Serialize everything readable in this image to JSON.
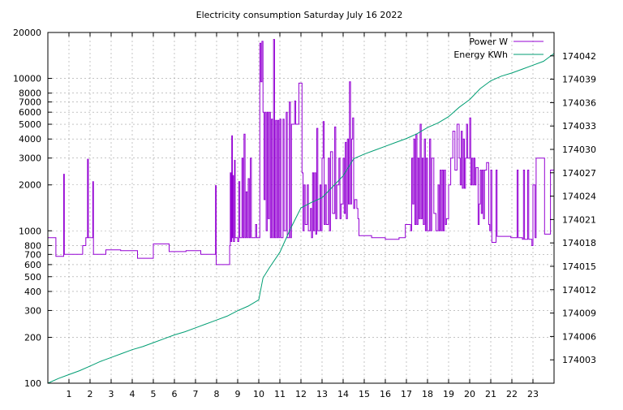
{
  "chart_data": {
    "type": "line",
    "title": "Electricity consumption Saturday July 16 2022",
    "xlabel": "",
    "ylabel": "",
    "y2label": "",
    "grid": true,
    "legend_position": "top-right",
    "x_ticks": [
      1,
      2,
      3,
      4,
      5,
      6,
      7,
      8,
      9,
      10,
      11,
      12,
      13,
      14,
      15,
      16,
      17,
      18,
      19,
      20,
      21,
      22,
      23
    ],
    "xlim": [
      0,
      24
    ],
    "y_scale": "log",
    "ylim": [
      100,
      20000
    ],
    "y_ticks": [
      100,
      200,
      300,
      400,
      500,
      600,
      700,
      800,
      1000,
      2000,
      3000,
      4000,
      5000,
      6000,
      7000,
      8000,
      10000,
      20000
    ],
    "y2lim": [
      174000,
      174045
    ],
    "y2_ticks": [
      174003,
      174006,
      174009,
      174012,
      174015,
      174018,
      174021,
      174024,
      174027,
      174030,
      174033,
      174036,
      174039,
      174042
    ],
    "series": [
      {
        "name": "Power W",
        "axis": "y",
        "color": "#9400d3",
        "points": [
          [
            0,
            900
          ],
          [
            0.35,
            900
          ],
          [
            0.38,
            680
          ],
          [
            0.72,
            680
          ],
          [
            0.75,
            2350
          ],
          [
            0.78,
            700
          ],
          [
            1.6,
            700
          ],
          [
            1.65,
            800
          ],
          [
            1.8,
            900
          ],
          [
            1.88,
            2950
          ],
          [
            1.92,
            900
          ],
          [
            2.1,
            900
          ],
          [
            2.13,
            2100
          ],
          [
            2.16,
            700
          ],
          [
            2.7,
            700
          ],
          [
            2.75,
            750
          ],
          [
            3.4,
            750
          ],
          [
            3.45,
            740
          ],
          [
            4.2,
            740
          ],
          [
            4.25,
            660
          ],
          [
            4.95,
            660
          ],
          [
            5.0,
            820
          ],
          [
            5.7,
            820
          ],
          [
            5.75,
            730
          ],
          [
            6.5,
            730
          ],
          [
            6.55,
            740
          ],
          [
            7.2,
            740
          ],
          [
            7.25,
            700
          ],
          [
            7.9,
            700
          ],
          [
            7.95,
            1980
          ],
          [
            7.98,
            600
          ],
          [
            8.6,
            600
          ],
          [
            8.62,
            800
          ],
          [
            8.65,
            2400
          ],
          [
            8.68,
            850
          ],
          [
            8.72,
            4200
          ],
          [
            8.75,
            900
          ],
          [
            8.78,
            2300
          ],
          [
            8.8,
            850
          ],
          [
            8.85,
            2900
          ],
          [
            8.88,
            900
          ],
          [
            9.0,
            850
          ],
          [
            9.05,
            2100
          ],
          [
            9.1,
            900
          ],
          [
            9.2,
            3000
          ],
          [
            9.25,
            900
          ],
          [
            9.3,
            4300
          ],
          [
            9.35,
            900
          ],
          [
            9.4,
            1800
          ],
          [
            9.45,
            900
          ],
          [
            9.5,
            2200
          ],
          [
            9.55,
            900
          ],
          [
            9.6,
            3000
          ],
          [
            9.65,
            900
          ],
          [
            9.8,
            900
          ],
          [
            9.85,
            1100
          ],
          [
            9.9,
            900
          ],
          [
            10.0,
            900
          ],
          [
            10.05,
            17000
          ],
          [
            10.1,
            9500
          ],
          [
            10.15,
            17500
          ],
          [
            10.2,
            6000
          ],
          [
            10.25,
            1600
          ],
          [
            10.3,
            6000
          ],
          [
            10.35,
            1000
          ],
          [
            10.4,
            6000
          ],
          [
            10.45,
            1200
          ],
          [
            10.5,
            6000
          ],
          [
            10.55,
            900
          ],
          [
            10.6,
            5400
          ],
          [
            10.65,
            900
          ],
          [
            10.7,
            18000
          ],
          [
            10.75,
            900
          ],
          [
            10.8,
            5300
          ],
          [
            10.85,
            900
          ],
          [
            10.9,
            5300
          ],
          [
            10.95,
            900
          ],
          [
            11.0,
            5400
          ],
          [
            11.05,
            900
          ],
          [
            11.15,
            5400
          ],
          [
            11.2,
            1000
          ],
          [
            11.3,
            6000
          ],
          [
            11.35,
            900
          ],
          [
            11.45,
            7000
          ],
          [
            11.5,
            900
          ],
          [
            11.55,
            5000
          ],
          [
            11.65,
            5000
          ],
          [
            11.7,
            7100
          ],
          [
            11.75,
            5000
          ],
          [
            11.85,
            5000
          ],
          [
            11.9,
            9300
          ],
          [
            12.0,
            9300
          ],
          [
            12.05,
            2400
          ],
          [
            12.1,
            1000
          ],
          [
            12.15,
            2000
          ],
          [
            12.2,
            1100
          ],
          [
            12.3,
            2000
          ],
          [
            12.35,
            1000
          ],
          [
            12.45,
            1400
          ],
          [
            12.5,
            900
          ],
          [
            12.55,
            2400
          ],
          [
            12.6,
            1000
          ],
          [
            12.65,
            2400
          ],
          [
            12.7,
            950
          ],
          [
            12.75,
            4700
          ],
          [
            12.8,
            1000
          ],
          [
            12.9,
            2000
          ],
          [
            12.95,
            1000
          ],
          [
            13.0,
            3000
          ],
          [
            13.05,
            5200
          ],
          [
            13.1,
            1100
          ],
          [
            13.15,
            2000
          ],
          [
            13.2,
            1100
          ],
          [
            13.3,
            3000
          ],
          [
            13.35,
            1000
          ],
          [
            13.4,
            3300
          ],
          [
            13.45,
            3300
          ],
          [
            13.5,
            1300
          ],
          [
            13.6,
            4800
          ],
          [
            13.65,
            1200
          ],
          [
            13.7,
            2000
          ],
          [
            13.8,
            3000
          ],
          [
            13.85,
            1200
          ],
          [
            13.9,
            1500
          ],
          [
            14.0,
            3000
          ],
          [
            14.05,
            1300
          ],
          [
            14.1,
            3800
          ],
          [
            14.15,
            1200
          ],
          [
            14.2,
            4000
          ],
          [
            14.25,
            1500
          ],
          [
            14.3,
            9500
          ],
          [
            14.35,
            1500
          ],
          [
            14.4,
            4000
          ],
          [
            14.45,
            5500
          ],
          [
            14.5,
            1400
          ],
          [
            14.55,
            1600
          ],
          [
            14.6,
            1600
          ],
          [
            14.65,
            1400
          ],
          [
            14.7,
            1200
          ],
          [
            14.75,
            930
          ],
          [
            15.3,
            930
          ],
          [
            15.35,
            900
          ],
          [
            16.0,
            880
          ],
          [
            16.6,
            880
          ],
          [
            16.65,
            900
          ],
          [
            16.9,
            900
          ],
          [
            16.95,
            1100
          ],
          [
            17.2,
            1000
          ],
          [
            17.25,
            3000
          ],
          [
            17.3,
            1500
          ],
          [
            17.35,
            4000
          ],
          [
            17.4,
            1100
          ],
          [
            17.45,
            4300
          ],
          [
            17.5,
            1100
          ],
          [
            17.55,
            3000
          ],
          [
            17.6,
            1200
          ],
          [
            17.65,
            5000
          ],
          [
            17.7,
            1200
          ],
          [
            17.75,
            3000
          ],
          [
            17.8,
            1100
          ],
          [
            17.85,
            4000
          ],
          [
            17.9,
            1000
          ],
          [
            17.95,
            3000
          ],
          [
            18.0,
            1000
          ],
          [
            18.1,
            4000
          ],
          [
            18.15,
            1000
          ],
          [
            18.2,
            3000
          ],
          [
            18.3,
            1300
          ],
          [
            18.4,
            1000
          ],
          [
            18.5,
            2000
          ],
          [
            18.55,
            1000
          ],
          [
            18.6,
            2500
          ],
          [
            18.65,
            1000
          ],
          [
            18.7,
            2500
          ],
          [
            18.75,
            1000
          ],
          [
            18.8,
            2500
          ],
          [
            18.85,
            1100
          ],
          [
            18.9,
            1200
          ],
          [
            19.0,
            2000
          ],
          [
            19.1,
            3000
          ],
          [
            19.2,
            4500
          ],
          [
            19.3,
            2500
          ],
          [
            19.4,
            5000
          ],
          [
            19.5,
            3000
          ],
          [
            19.55,
            2000
          ],
          [
            19.6,
            4500
          ],
          [
            19.65,
            1900
          ],
          [
            19.7,
            4000
          ],
          [
            19.75,
            1900
          ],
          [
            19.8,
            3000
          ],
          [
            19.85,
            5000
          ],
          [
            19.9,
            3000
          ],
          [
            20.0,
            5500
          ],
          [
            20.05,
            2000
          ],
          [
            20.1,
            3000
          ],
          [
            20.15,
            2000
          ],
          [
            20.2,
            3000
          ],
          [
            20.25,
            2000
          ],
          [
            20.3,
            2600
          ],
          [
            20.4,
            1100
          ],
          [
            20.45,
            1500
          ],
          [
            20.5,
            2500
          ],
          [
            20.55,
            1300
          ],
          [
            20.6,
            2500
          ],
          [
            20.65,
            1200
          ],
          [
            20.7,
            2500
          ],
          [
            20.8,
            2800
          ],
          [
            20.9,
            1100
          ],
          [
            20.95,
            1000
          ],
          [
            21.0,
            2500
          ],
          [
            21.05,
            840
          ],
          [
            21.2,
            840
          ],
          [
            21.25,
            2500
          ],
          [
            21.3,
            920
          ],
          [
            21.9,
            920
          ],
          [
            21.95,
            900
          ],
          [
            22.2,
            900
          ],
          [
            22.25,
            2500
          ],
          [
            22.3,
            900
          ],
          [
            22.5,
            880
          ],
          [
            22.55,
            2500
          ],
          [
            22.6,
            880
          ],
          [
            22.7,
            880
          ],
          [
            22.75,
            2500
          ],
          [
            22.8,
            880
          ],
          [
            22.95,
            800
          ],
          [
            23.0,
            2000
          ],
          [
            23.1,
            900
          ],
          [
            23.15,
            3000
          ],
          [
            23.5,
            3000
          ],
          [
            23.55,
            950
          ],
          [
            23.8,
            950
          ],
          [
            23.83,
            2500
          ],
          [
            24,
            2500
          ]
        ]
      },
      {
        "name": "Energy KWh",
        "axis": "y2",
        "color": "#009e73",
        "points": [
          [
            0,
            174000.0
          ],
          [
            0.5,
            174000.6
          ],
          [
            1,
            174001.1
          ],
          [
            1.5,
            174001.6
          ],
          [
            2,
            174002.2
          ],
          [
            2.5,
            174002.8
          ],
          [
            3,
            174003.3
          ],
          [
            3.5,
            174003.8
          ],
          [
            4,
            174004.3
          ],
          [
            4.5,
            174004.7
          ],
          [
            5,
            174005.2
          ],
          [
            5.5,
            174005.7
          ],
          [
            6,
            174006.2
          ],
          [
            6.5,
            174006.6
          ],
          [
            7,
            174007.1
          ],
          [
            7.5,
            174007.6
          ],
          [
            8,
            174008.1
          ],
          [
            8.5,
            174008.6
          ],
          [
            9,
            174009.3
          ],
          [
            9.5,
            174009.9
          ],
          [
            10,
            174010.7
          ],
          [
            10.2,
            174013.5
          ],
          [
            10.5,
            174014.8
          ],
          [
            11,
            174016.8
          ],
          [
            11.5,
            174019.8
          ],
          [
            12,
            174022.5
          ],
          [
            12.5,
            174023.2
          ],
          [
            13,
            174023.8
          ],
          [
            13.5,
            174025.2
          ],
          [
            14,
            174026.6
          ],
          [
            14.5,
            174028.8
          ],
          [
            15,
            174029.4
          ],
          [
            15.5,
            174029.9
          ],
          [
            16,
            174030.4
          ],
          [
            16.5,
            174030.9
          ],
          [
            17,
            174031.4
          ],
          [
            17.5,
            174032.0
          ],
          [
            18,
            174032.8
          ],
          [
            18.5,
            174033.4
          ],
          [
            19,
            174034.2
          ],
          [
            19.5,
            174035.4
          ],
          [
            20,
            174036.4
          ],
          [
            20.5,
            174037.8
          ],
          [
            21,
            174038.8
          ],
          [
            21.5,
            174039.4
          ],
          [
            22,
            174039.8
          ],
          [
            22.5,
            174040.3
          ],
          [
            23,
            174040.8
          ],
          [
            23.5,
            174041.3
          ],
          [
            24,
            174042.3
          ]
        ]
      }
    ]
  }
}
